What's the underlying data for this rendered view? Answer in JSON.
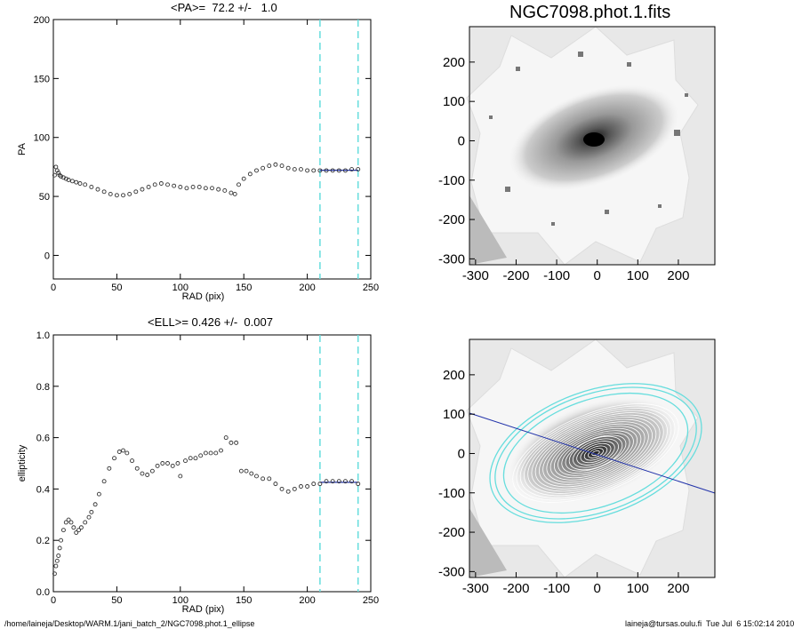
{
  "pa_panel": {
    "title": "<PA>=  72.2 +/-   1.0",
    "xlabel": "RAD (pix)",
    "ylabel": "PA",
    "xticks": [
      "0",
      "50",
      "100",
      "150",
      "200",
      "250"
    ],
    "yticks": [
      "0",
      "50",
      "100",
      "150",
      "200"
    ]
  },
  "ell_panel": {
    "title": "<ELL>= 0.426 +/-  0.007",
    "xlabel": "RAD (pix)",
    "ylabel": "ellipticity",
    "xticks": [
      "0",
      "50",
      "100",
      "150",
      "200",
      "250"
    ],
    "yticks": [
      "0.0",
      "0.2",
      "0.4",
      "0.6",
      "0.8",
      "1.0"
    ]
  },
  "image_panel": {
    "title": "NGC7098.phot.1.fits",
    "xticks": [
      "-300",
      "-200",
      "-100",
      "0",
      "100",
      "200"
    ],
    "yticks": [
      "-300",
      "-200",
      "-100",
      "0",
      "100",
      "200"
    ]
  },
  "ellipse_panel": {
    "xticks": [
      "-300",
      "-200",
      "-100",
      "0",
      "100",
      "200"
    ],
    "yticks": [
      "-300",
      "-200",
      "-100",
      "0",
      "100",
      "200"
    ]
  },
  "footer": {
    "path": "/home/laineja/Desktop/WARM.1/jani_batch_2/NGC7098.phot.1_ellipse",
    "stamp": "laineja@tursas.oulu.fi  Tue Jul  6 15:02:14 2010"
  },
  "colors": {
    "fit_line": "#2233aa",
    "fit_window": "#66dddd",
    "data": "#333333"
  },
  "chart_data": [
    {
      "type": "scatter",
      "title": "<PA>=  72.2 +/-   1.0",
      "xlabel": "RAD (pix)",
      "ylabel": "PA",
      "xlim": [
        0,
        250
      ],
      "ylim": [
        -20,
        200
      ],
      "fit_window": [
        210,
        240
      ],
      "fit_value": 72.2,
      "fit_error": 1.0,
      "x": [
        1,
        2,
        3,
        4,
        5,
        6,
        8,
        10,
        12,
        15,
        18,
        21,
        25,
        30,
        35,
        40,
        45,
        50,
        55,
        60,
        65,
        70,
        75,
        80,
        85,
        90,
        95,
        100,
        105,
        110,
        115,
        120,
        125,
        130,
        135,
        140,
        143,
        146,
        150,
        155,
        160,
        165,
        170,
        175,
        180,
        185,
        190,
        195,
        200,
        205,
        210,
        215,
        220,
        225,
        230,
        235,
        240
      ],
      "y": [
        68,
        75,
        72,
        70,
        68,
        67,
        66,
        65,
        64,
        63,
        62,
        61,
        60,
        58,
        56,
        54,
        52,
        51,
        51,
        52,
        54,
        56,
        58,
        60,
        61,
        60,
        59,
        58,
        57,
        58,
        58,
        57,
        57,
        56,
        55,
        53,
        52,
        60,
        65,
        69,
        72,
        74,
        76,
        77,
        76,
        74,
        73,
        73,
        72,
        72,
        72,
        72,
        72,
        72,
        72,
        73,
        73
      ]
    },
    {
      "type": "scatter",
      "title": "<ELL>= 0.426 +/-  0.007",
      "xlabel": "RAD (pix)",
      "ylabel": "ellipticity",
      "xlim": [
        0,
        250
      ],
      "ylim": [
        0,
        1.0
      ],
      "fit_window": [
        210,
        240
      ],
      "fit_value": 0.426,
      "fit_error": 0.007,
      "x": [
        1,
        2,
        3,
        4,
        5,
        6,
        8,
        10,
        12,
        14,
        16,
        18,
        20,
        22,
        25,
        28,
        30,
        33,
        36,
        40,
        44,
        48,
        52,
        55,
        58,
        62,
        66,
        70,
        74,
        78,
        82,
        86,
        90,
        94,
        98,
        100,
        104,
        108,
        112,
        116,
        120,
        124,
        128,
        132,
        136,
        140,
        144,
        148,
        152,
        156,
        160,
        165,
        170,
        175,
        180,
        185,
        190,
        195,
        200,
        205,
        210,
        215,
        220,
        225,
        230,
        235,
        240
      ],
      "y": [
        0.07,
        0.1,
        0.12,
        0.14,
        0.17,
        0.2,
        0.24,
        0.27,
        0.28,
        0.27,
        0.25,
        0.23,
        0.24,
        0.25,
        0.27,
        0.29,
        0.31,
        0.34,
        0.38,
        0.43,
        0.48,
        0.52,
        0.545,
        0.55,
        0.54,
        0.51,
        0.48,
        0.46,
        0.455,
        0.47,
        0.49,
        0.5,
        0.5,
        0.49,
        0.5,
        0.45,
        0.51,
        0.52,
        0.52,
        0.53,
        0.54,
        0.54,
        0.54,
        0.55,
        0.6,
        0.58,
        0.58,
        0.47,
        0.47,
        0.46,
        0.45,
        0.44,
        0.44,
        0.42,
        0.4,
        0.39,
        0.4,
        0.41,
        0.41,
        0.42,
        0.42,
        0.43,
        0.43,
        0.43,
        0.43,
        0.43,
        0.42
      ]
    }
  ]
}
